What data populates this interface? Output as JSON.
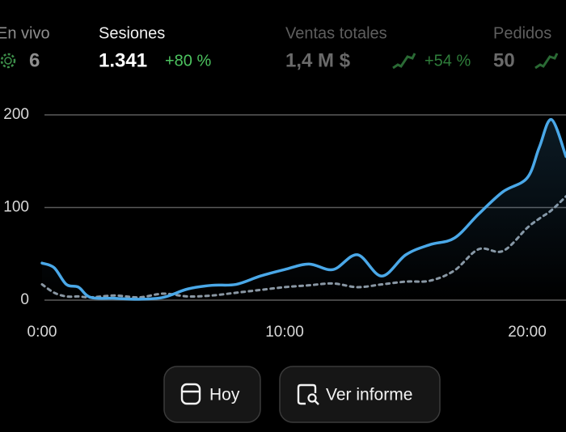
{
  "metrics": [
    {
      "label": "En vivo",
      "value": "6"
    },
    {
      "label": "Sesiones",
      "value": "1.341",
      "delta": "+80 %"
    },
    {
      "label": "Ventas totales",
      "value": "1,4 M $",
      "delta": "+54 %"
    },
    {
      "label": "Pedidos",
      "value": "50"
    }
  ],
  "chart_data": {
    "type": "line",
    "x": [
      0,
      0.5,
      1,
      1.5,
      2,
      3,
      4,
      5,
      6,
      7,
      8,
      9,
      10,
      11,
      12,
      13,
      14,
      15,
      16,
      17,
      18,
      19,
      20,
      20.5,
      21,
      21.6
    ],
    "series": [
      {
        "color": "#4aa8e8",
        "dashed": false,
        "values": [
          40,
          35,
          17,
          14,
          3,
          2,
          1,
          3,
          12,
          16,
          17,
          26,
          33,
          39,
          33,
          49,
          26,
          49,
          60,
          67,
          93,
          117,
          132,
          165,
          195,
          155
        ]
      },
      {
        "color": "#8a97a3",
        "dashed": true,
        "values": [
          17,
          8,
          4,
          4,
          3,
          5,
          3,
          7,
          4,
          5,
          8,
          11,
          14,
          16,
          18,
          14,
          17,
          20,
          21,
          32,
          55,
          53,
          78,
          88,
          97,
          112
        ]
      }
    ],
    "xlim": [
      0,
      21.6
    ],
    "xticks": [
      {
        "value": 0,
        "label": "0:00"
      },
      {
        "value": 10,
        "label": "10:00"
      },
      {
        "value": 20,
        "label": "20:00"
      }
    ],
    "ylim": [
      0,
      200
    ],
    "yticks": [
      0,
      100,
      200
    ],
    "grid": true
  },
  "buttons": [
    "Hoy",
    "Ver informe"
  ]
}
